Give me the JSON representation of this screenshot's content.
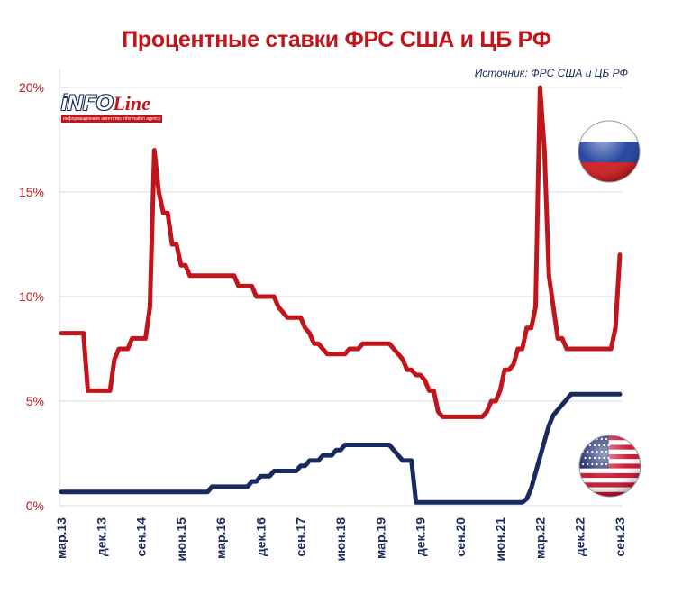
{
  "title": "Процентные ставки ФРС США и ЦБ РФ",
  "source": "Источник: ФРС США и ЦБ РФ",
  "logo": {
    "main": "iNFO",
    "accent": "Line",
    "subtitle": "информационное агентство information agency"
  },
  "icons": {
    "russia": "russia-flag-icon",
    "usa": "usa-flag-icon"
  },
  "colors": {
    "cbr": "#c0161b",
    "fed": "#1a2a5e",
    "grid": "#d9d9d9"
  },
  "chart_data": {
    "type": "line",
    "title": "Процентные ставки ФРС США и ЦБ РФ",
    "yticks": [
      "0%",
      "5%",
      "10%",
      "15%",
      "20%"
    ],
    "ytick_values": [
      0,
      5,
      10,
      15,
      20
    ],
    "ylim": [
      0,
      20
    ],
    "xticks": [
      "мар.13",
      "дек.13",
      "сен.14",
      "июн.15",
      "мар.16",
      "дек.16",
      "сен.17",
      "июн.18",
      "мар.19",
      "дек.19",
      "сен.20",
      "июн.21",
      "мар.22",
      "дек.22",
      "сен.23"
    ],
    "xtick_months": [
      0,
      9,
      18,
      27,
      36,
      45,
      54,
      63,
      72,
      81,
      90,
      99,
      108,
      117,
      126
    ],
    "x_start": "2013-03",
    "x_end": "2023-09",
    "series": [
      {
        "name": "ЦБ РФ",
        "color": "#c0161b",
        "points": [
          [
            0,
            8.25
          ],
          [
            5,
            8.25
          ],
          [
            6,
            5.5
          ],
          [
            11,
            5.5
          ],
          [
            12,
            7.0
          ],
          [
            13,
            7.5
          ],
          [
            15,
            7.5
          ],
          [
            16,
            8.0
          ],
          [
            19,
            8.0
          ],
          [
            20,
            9.5
          ],
          [
            21,
            17.0
          ],
          [
            22,
            15.0
          ],
          [
            23,
            14.0
          ],
          [
            24,
            14.0
          ],
          [
            25,
            12.5
          ],
          [
            26,
            12.5
          ],
          [
            27,
            11.5
          ],
          [
            28,
            11.5
          ],
          [
            29,
            11.0
          ],
          [
            39,
            11.0
          ],
          [
            40,
            10.5
          ],
          [
            43,
            10.5
          ],
          [
            44,
            10.0
          ],
          [
            48,
            10.0
          ],
          [
            49,
            9.5
          ],
          [
            50,
            9.25
          ],
          [
            51,
            9.0
          ],
          [
            54,
            9.0
          ],
          [
            55,
            8.5
          ],
          [
            56,
            8.25
          ],
          [
            57,
            7.75
          ],
          [
            58,
            7.75
          ],
          [
            59,
            7.5
          ],
          [
            60,
            7.25
          ],
          [
            64,
            7.25
          ],
          [
            65,
            7.5
          ],
          [
            67,
            7.5
          ],
          [
            68,
            7.75
          ],
          [
            74,
            7.75
          ],
          [
            75,
            7.5
          ],
          [
            76,
            7.25
          ],
          [
            77,
            7.0
          ],
          [
            78,
            6.5
          ],
          [
            79,
            6.5
          ],
          [
            80,
            6.25
          ],
          [
            81,
            6.25
          ],
          [
            82,
            6.0
          ],
          [
            83,
            5.5
          ],
          [
            84,
            5.5
          ],
          [
            85,
            4.5
          ],
          [
            86,
            4.25
          ],
          [
            95,
            4.25
          ],
          [
            96,
            4.5
          ],
          [
            97,
            5.0
          ],
          [
            98,
            5.0
          ],
          [
            99,
            5.5
          ],
          [
            100,
            6.5
          ],
          [
            101,
            6.5
          ],
          [
            102,
            6.75
          ],
          [
            103,
            7.5
          ],
          [
            104,
            7.5
          ],
          [
            105,
            8.5
          ],
          [
            106,
            8.5
          ],
          [
            107,
            9.5
          ],
          [
            108,
            20.0
          ],
          [
            109,
            17.0
          ],
          [
            110,
            11.0
          ],
          [
            111,
            9.5
          ],
          [
            112,
            8.0
          ],
          [
            113,
            8.0
          ],
          [
            114,
            7.5
          ],
          [
            124,
            7.5
          ],
          [
            125,
            8.5
          ],
          [
            126,
            12.0
          ]
        ]
      },
      {
        "name": "ФРС США",
        "color": "#1a2a5e",
        "points": [
          [
            0,
            0.66
          ],
          [
            33,
            0.66
          ],
          [
            34,
            0.91
          ],
          [
            42,
            0.91
          ],
          [
            43,
            1.16
          ],
          [
            44,
            1.16
          ],
          [
            45,
            1.41
          ],
          [
            47,
            1.41
          ],
          [
            48,
            1.66
          ],
          [
            53,
            1.66
          ],
          [
            54,
            1.91
          ],
          [
            55,
            1.91
          ],
          [
            56,
            2.16
          ],
          [
            58,
            2.16
          ],
          [
            59,
            2.41
          ],
          [
            61,
            2.41
          ],
          [
            62,
            2.66
          ],
          [
            63,
            2.66
          ],
          [
            64,
            2.91
          ],
          [
            74,
            2.91
          ],
          [
            75,
            2.66
          ],
          [
            76,
            2.41
          ],
          [
            77,
            2.16
          ],
          [
            79,
            2.16
          ],
          [
            80,
            0.16
          ],
          [
            104,
            0.16
          ],
          [
            105,
            0.33
          ],
          [
            106,
            0.83
          ],
          [
            107,
            1.58
          ],
          [
            108,
            2.33
          ],
          [
            109,
            3.08
          ],
          [
            110,
            3.83
          ],
          [
            111,
            4.33
          ],
          [
            112,
            4.58
          ],
          [
            113,
            4.83
          ],
          [
            114,
            5.08
          ],
          [
            115,
            5.33
          ],
          [
            126,
            5.33
          ]
        ]
      }
    ]
  }
}
